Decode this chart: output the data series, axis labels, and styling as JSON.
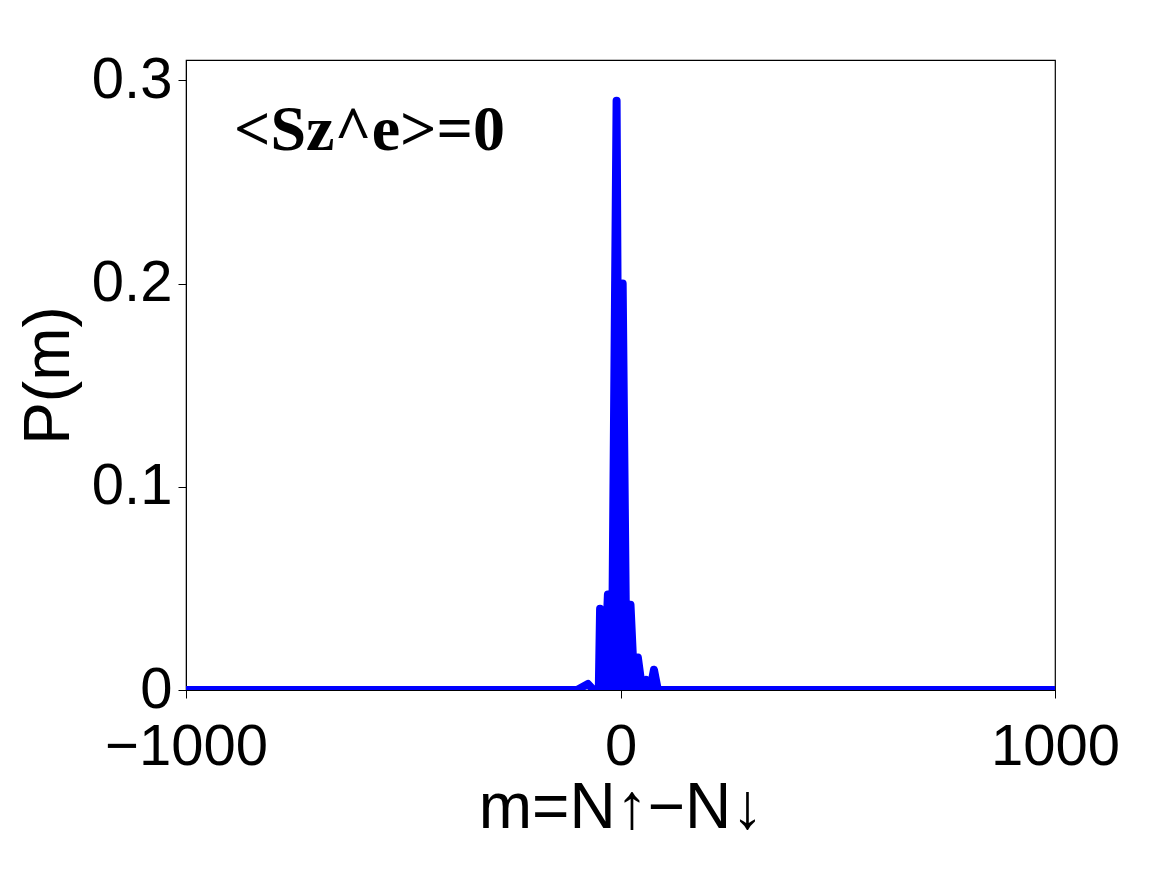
{
  "chart_data": {
    "type": "line",
    "xlabel": "m=N↑−N↓",
    "ylabel": "P(m)",
    "annotations": [
      "<Sz^e>=0"
    ],
    "xlim": [
      -1000,
      1000
    ],
    "xticks": [
      -1000,
      0,
      1000
    ],
    "ylim": [
      0,
      0.31
    ],
    "yticks": [
      0,
      0.1,
      0.2,
      0.3
    ],
    "grid": false,
    "line_style": "solid",
    "series": [
      {
        "color": "#0000ff",
        "x": [
          -1000,
          -100,
          -75,
          -62,
          -50,
          -47,
          -38,
          -29,
          -20,
          -9,
          -2,
          5,
          14,
          23,
          32,
          40,
          50,
          59,
          68,
          77,
          86,
          1000
        ],
        "values": [
          0,
          0,
          0.003,
          0,
          0,
          0.04,
          0,
          0.047,
          0,
          0.29,
          0,
          0.2,
          0,
          0.042,
          0,
          0.016,
          0,
          0.005,
          0,
          0.01,
          0,
          0
        ]
      }
    ]
  }
}
